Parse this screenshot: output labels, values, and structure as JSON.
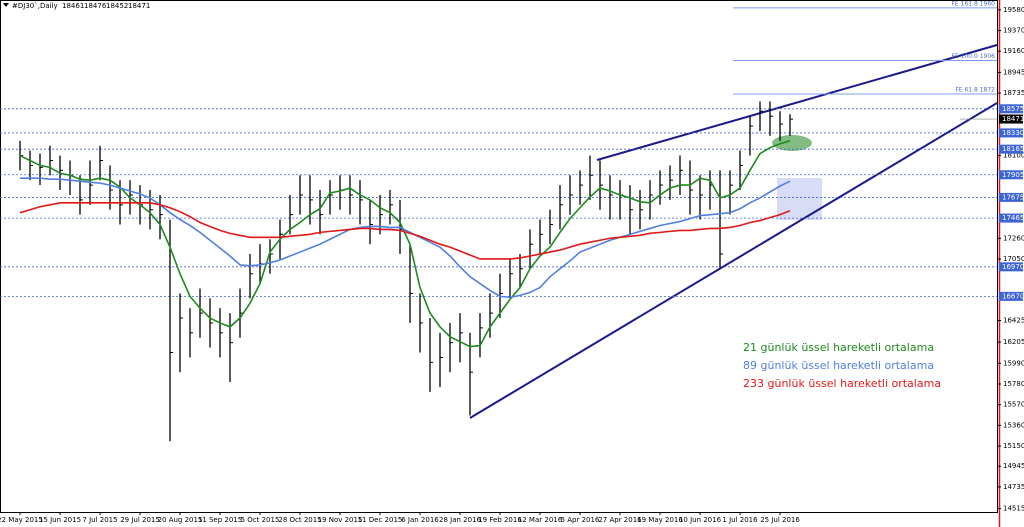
{
  "chart_data": {
    "type": "ohlc",
    "title": "#DJ30`,Daily",
    "header_values": [
      18461,
      18476,
      18452,
      18471
    ],
    "color": "#000000",
    "categories": [
      "22 May 2015",
      null,
      null,
      null,
      "15 Jun 2015",
      null,
      null,
      null,
      "7 Jul 2015",
      null,
      null,
      null,
      "29 Jul 2015",
      null,
      null,
      null,
      "20 Aug 2015",
      null,
      null,
      null,
      "11 Sep 2015",
      null,
      null,
      null,
      "5 Oct 2015",
      null,
      null,
      null,
      "28 Oct 2015",
      null,
      null,
      null,
      "19 Nov 2015",
      null,
      null,
      null,
      "11 Dec 2015",
      null,
      null,
      null,
      "6 Jan 2016",
      null,
      null,
      null,
      "28 Jan 2016",
      null,
      null,
      null,
      "19 Feb 2016",
      null,
      null,
      null,
      "12 Mar 2016",
      null,
      null,
      null,
      "5 Apr 2016",
      null,
      null,
      null,
      "27 Apr 2016",
      null,
      null,
      null,
      "19 May 2016",
      null,
      null,
      null,
      "10 Jun 2016",
      null,
      null,
      null,
      "1 Jul 2016",
      null,
      null,
      null,
      "25 Jul 2016",
      null
    ],
    "price": {
      "high": [
        18250,
        18150,
        18120,
        18200,
        18100,
        18050,
        17900,
        18050,
        18200,
        18000,
        17850,
        17850,
        17800,
        17750,
        17700,
        17450,
        16700,
        16550,
        16750,
        16650,
        16550,
        16500,
        16750,
        17100,
        17200,
        17250,
        17450,
        17700,
        17900,
        17900,
        17750,
        17850,
        17900,
        17900,
        17850,
        17650,
        17700,
        17750,
        17650,
        17200,
        16700,
        16450,
        16300,
        16400,
        16500,
        16300,
        16500,
        16700,
        16900,
        17050,
        17100,
        17350,
        17450,
        17550,
        17800,
        17900,
        17950,
        18100,
        18050,
        17900,
        17850,
        17800,
        17750,
        17850,
        17950,
        18000,
        18100,
        18050,
        17900,
        17950,
        17950,
        17950,
        18150,
        18500,
        18650,
        18650,
        18550,
        18520
      ],
      "low": [
        17950,
        17850,
        17800,
        17900,
        17750,
        17700,
        17500,
        17600,
        17850,
        17550,
        17400,
        17500,
        17400,
        17350,
        17250,
        15200,
        15900,
        16050,
        16250,
        16150,
        16050,
        15800,
        16250,
        16650,
        16800,
        16900,
        17050,
        17300,
        17500,
        17400,
        17300,
        17500,
        17550,
        17500,
        17400,
        17200,
        17300,
        17400,
        17100,
        16400,
        16100,
        15700,
        15750,
        15900,
        16000,
        15460,
        16050,
        16250,
        16450,
        16650,
        16750,
        16950,
        17100,
        17200,
        17350,
        17500,
        17600,
        17650,
        17550,
        17450,
        17450,
        17300,
        17350,
        17450,
        17600,
        17650,
        17700,
        17500,
        17450,
        17550,
        16960,
        17500,
        17750,
        18100,
        18350,
        18300,
        18250,
        18300
      ],
      "close": [
        18100,
        18000,
        17980,
        18050,
        17950,
        17900,
        17650,
        17800,
        18050,
        17750,
        17600,
        17700,
        17600,
        17550,
        17500,
        16100,
        16450,
        16300,
        16500,
        16400,
        16300,
        16200,
        16500,
        16900,
        17000,
        17100,
        17300,
        17500,
        17700,
        17650,
        17500,
        17700,
        17750,
        17700,
        17650,
        17400,
        17500,
        17600,
        17350,
        16700,
        16400,
        16000,
        16050,
        16200,
        16300,
        15900,
        16350,
        16500,
        16700,
        16900,
        16950,
        17200,
        17300,
        17400,
        17600,
        17700,
        17800,
        17900,
        17800,
        17700,
        17700,
        17550,
        17550,
        17700,
        17800,
        17850,
        17950,
        17750,
        17700,
        17800,
        17100,
        17800,
        18000,
        18400,
        18550,
        18500,
        18420,
        18470
      ]
    },
    "series": [
      {
        "name": "21 günlük üssel hareketli ortalama",
        "color": "#1e8a1e",
        "values": [
          18100,
          18050,
          18000,
          17980,
          17920,
          17900,
          17860,
          17850,
          17870,
          17850,
          17780,
          17670,
          17600,
          17520,
          17400,
          17170,
          16900,
          16670,
          16550,
          16450,
          16400,
          16360,
          16450,
          16600,
          16800,
          17120,
          17250,
          17350,
          17420,
          17500,
          17560,
          17720,
          17740,
          17770,
          17700,
          17650,
          17570,
          17520,
          17420,
          17200,
          16760,
          16500,
          16360,
          16260,
          16210,
          16160,
          16170,
          16360,
          16500,
          16640,
          16760,
          16950,
          17080,
          17170,
          17320,
          17460,
          17570,
          17680,
          17770,
          17740,
          17700,
          17670,
          17630,
          17620,
          17700,
          17770,
          17800,
          17800,
          17870,
          17850,
          17670,
          17700,
          17770,
          17950,
          18120,
          18180,
          18220,
          18250
        ]
      },
      {
        "name": "89 günlük üssel hareketli ortalama",
        "color": "#4f7fe0",
        "values": [
          17870,
          17870,
          17870,
          17860,
          17860,
          17850,
          17840,
          17830,
          17820,
          17800,
          17770,
          17740,
          17710,
          17670,
          17600,
          17520,
          17450,
          17390,
          17320,
          17240,
          17160,
          17080,
          16990,
          16980,
          16990,
          17010,
          17040,
          17080,
          17120,
          17160,
          17200,
          17250,
          17300,
          17350,
          17370,
          17380,
          17380,
          17370,
          17370,
          17320,
          17270,
          17220,
          17170,
          17080,
          16970,
          16870,
          16800,
          16730,
          16670,
          16660,
          16680,
          16710,
          16760,
          16870,
          16950,
          17030,
          17120,
          17160,
          17200,
          17240,
          17270,
          17300,
          17330,
          17360,
          17390,
          17410,
          17430,
          17460,
          17490,
          17500,
          17510,
          17520,
          17560,
          17620,
          17670,
          17730,
          17790,
          17840
        ]
      },
      {
        "name": "233 günlük üssel hareketli ortalama",
        "color": "#e01818",
        "values": [
          17520,
          17550,
          17580,
          17600,
          17620,
          17620,
          17620,
          17620,
          17620,
          17620,
          17620,
          17620,
          17620,
          17620,
          17600,
          17570,
          17530,
          17480,
          17420,
          17380,
          17340,
          17310,
          17290,
          17270,
          17270,
          17270,
          17270,
          17280,
          17290,
          17300,
          17320,
          17330,
          17340,
          17350,
          17360,
          17360,
          17350,
          17350,
          17340,
          17310,
          17280,
          17240,
          17200,
          17170,
          17130,
          17090,
          17050,
          17050,
          17050,
          17050,
          17060,
          17080,
          17100,
          17120,
          17140,
          17170,
          17200,
          17220,
          17240,
          17260,
          17270,
          17280,
          17290,
          17310,
          17320,
          17330,
          17340,
          17340,
          17350,
          17360,
          17360,
          17370,
          17390,
          17420,
          17440,
          17470,
          17500,
          17540
        ]
      }
    ],
    "levels": [
      18575,
      18330,
      18165,
      17905,
      17675,
      17465,
      16970,
      16670
    ],
    "last_price": 18471,
    "fibo": [
      {
        "label": "FE 161.8 1960",
        "value": 19600
      },
      {
        "label": "FE 100.0 1906",
        "value": 19065
      },
      {
        "label": "FE 61.8 1872",
        "value": 18725
      }
    ],
    "ylim": [
      14480,
      19680
    ],
    "yticks": [
      19580,
      19370,
      19160,
      18945,
      18735,
      18100,
      17260,
      17050,
      16425,
      16205,
      15990,
      15780,
      15570,
      15360,
      15150,
      14945,
      14735,
      14515
    ]
  }
}
